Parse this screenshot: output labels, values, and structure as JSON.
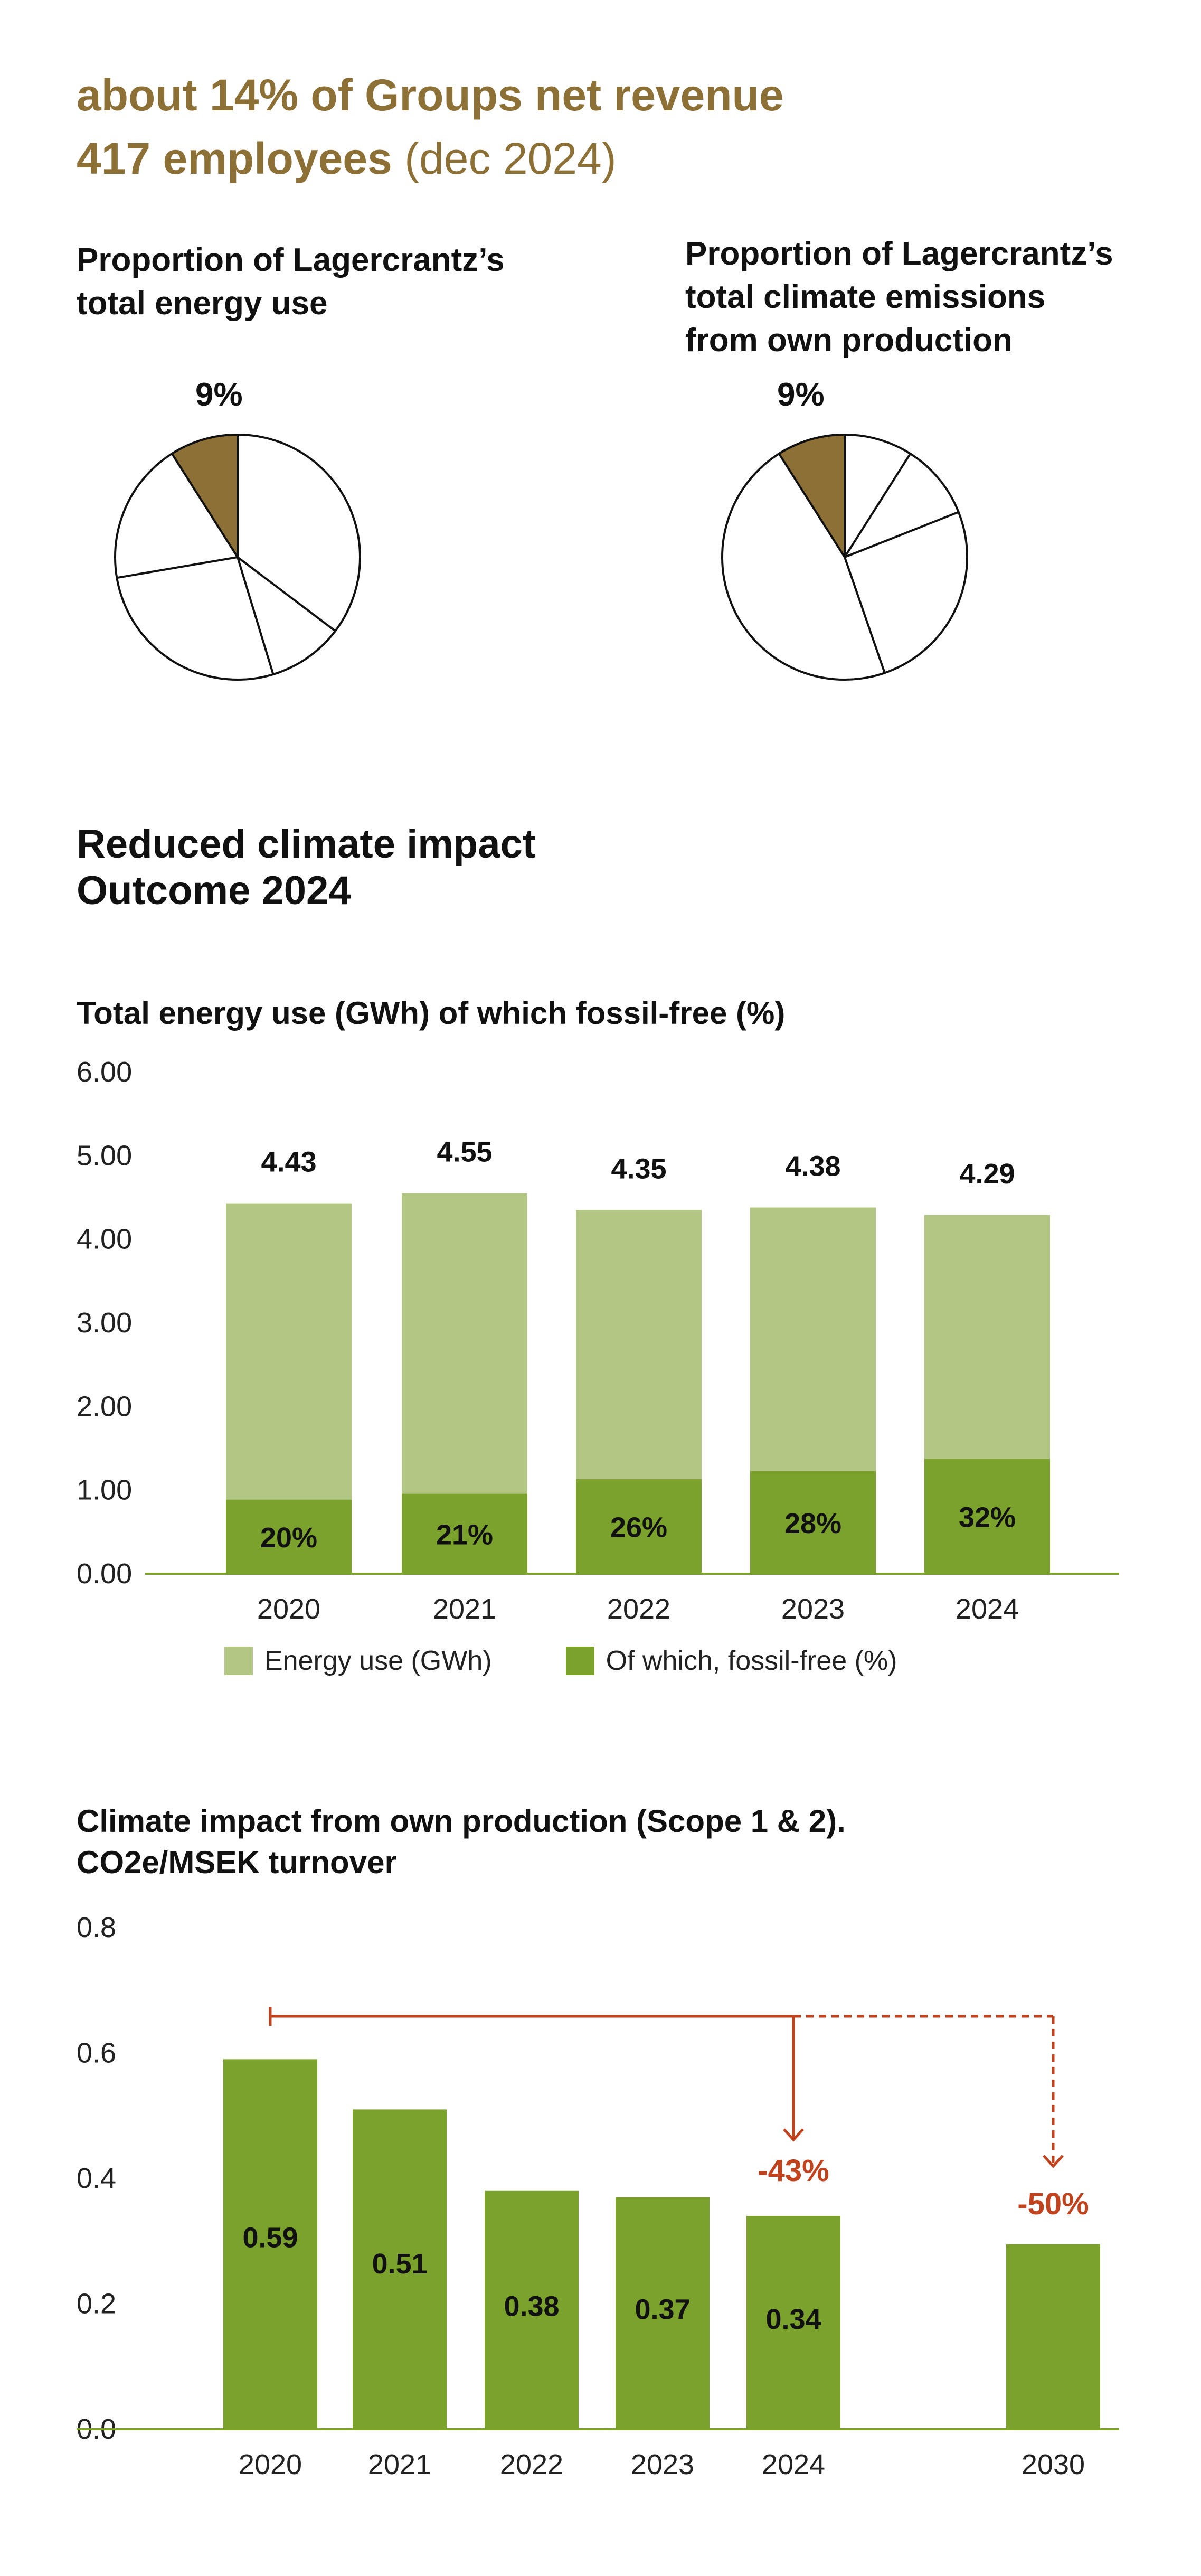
{
  "header": {
    "line1": "about 14% of Groups net revenue",
    "line2_bold": "417 employees",
    "line2_light": " (dec 2024)"
  },
  "pies": [
    {
      "title_lines": [
        "Proportion of Lagercrantz’s",
        "total energy use"
      ],
      "highlight_label": "9%",
      "highlight_value": 9
    },
    {
      "title_lines": [
        "Proportion of Lagercrantz’s",
        "total climate emissions",
        "from own production"
      ],
      "highlight_label": "9%",
      "highlight_value": 9
    }
  ],
  "section": {
    "title_line1": "Reduced climate impact",
    "title_line2": "Outcome 2024"
  },
  "chart_data": [
    {
      "type": "bar",
      "title": "Total energy use (GWh) of which fossil-free (%)",
      "categories": [
        "2020",
        "2021",
        "2022",
        "2023",
        "2024"
      ],
      "ylim": [
        0,
        6
      ],
      "yticks": [
        "6.00",
        "5.00",
        "4.00",
        "3.00",
        "2.00",
        "1.00",
        "0.00"
      ],
      "series": [
        {
          "name": "Energy use (GWh)",
          "values": [
            4.43,
            4.55,
            4.35,
            4.38,
            4.29
          ],
          "labels": [
            "4.43",
            "4.55",
            "4.35",
            "4.38",
            "4.29"
          ],
          "color": "#B3C785"
        },
        {
          "name": "Of which, fossil-free (%)",
          "values": [
            20,
            21,
            26,
            28,
            32
          ],
          "labels": [
            "20%",
            "21%",
            "26%",
            "28%",
            "32%"
          ],
          "color": "#7CA22E"
        }
      ],
      "legend_position": "bottom"
    },
    {
      "type": "bar",
      "title_lines": [
        "Climate impact from own production (Scope 1 & 2).",
        "CO2e/MSEK turnover"
      ],
      "categories": [
        "2020",
        "2021",
        "2022",
        "2023",
        "2024",
        "2030"
      ],
      "values": [
        0.59,
        0.51,
        0.38,
        0.37,
        0.34,
        0.295
      ],
      "labels": [
        "0.59",
        "0.51",
        "0.38",
        "0.37",
        "0.34",
        ""
      ],
      "ylim": [
        0,
        0.8
      ],
      "yticks": [
        "0.8",
        "0.6",
        "0.4",
        "0.2",
        "0.0"
      ],
      "color": "#7CA22E",
      "annotations": [
        {
          "label": "-43%",
          "target": "2024",
          "style": "solid"
        },
        {
          "label": "-50%",
          "target": "2030",
          "style": "dashed"
        }
      ],
      "annotation_color": "#C0431D"
    }
  ],
  "colors": {
    "brown": "#8C7036",
    "light_green": "#B3C785",
    "green": "#7CA22E",
    "annotation": "#C0431D",
    "axis": "#7CA22E"
  }
}
